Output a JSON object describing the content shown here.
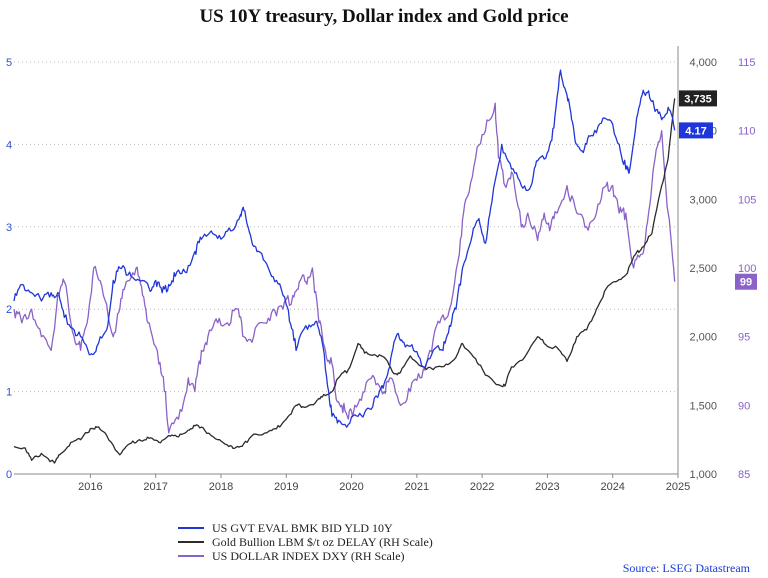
{
  "chart_data": {
    "type": "line",
    "title": "US 10Y treasury, Dollar index and Gold price",
    "x_ticks": [
      "2016",
      "2017",
      "2018",
      "2019",
      "2020",
      "2021",
      "2022",
      "2023",
      "2024",
      "2025"
    ],
    "x_range": [
      2015.33,
      2025.5
    ],
    "y_left": {
      "range": [
        0,
        5
      ],
      "ticks": [
        0,
        1,
        2,
        3,
        4,
        5
      ],
      "color": "#2f4fd8"
    },
    "y_gold": {
      "range": [
        1000,
        4000
      ],
      "ticks": [
        "1,000",
        "1,500",
        "2,000",
        "2,500",
        "3,000",
        "3,500",
        "4,000"
      ],
      "tick_values": [
        1000,
        1500,
        2000,
        2500,
        3000,
        3500,
        4000
      ],
      "color": "#444444"
    },
    "y_dxy": {
      "range": [
        85,
        115
      ],
      "ticks": [
        "85",
        "90",
        "95",
        "100",
        "105",
        "110",
        "115"
      ],
      "tick_values": [
        85,
        90,
        95,
        100,
        105,
        110,
        115
      ],
      "color": "#8a62c8"
    },
    "series": [
      {
        "name": "US GVT EVAL BMK BID YLD 10Y",
        "axis": "left",
        "color": "#1f36d8",
        "x": [
          2015.33,
          2015.45,
          2015.6,
          2015.75,
          2015.9,
          2016.0,
          2016.1,
          2016.25,
          2016.4,
          2016.5,
          2016.6,
          2016.75,
          2016.85,
          2016.95,
          2017.1,
          2017.25,
          2017.4,
          2017.5,
          2017.6,
          2017.7,
          2017.8,
          2017.95,
          2018.1,
          2018.2,
          2018.35,
          2018.5,
          2018.65,
          2018.8,
          2018.85,
          2018.95,
          2019.05,
          2019.2,
          2019.35,
          2019.5,
          2019.6,
          2019.65,
          2019.8,
          2019.95,
          2020.05,
          2020.15,
          2020.2,
          2020.3,
          2020.45,
          2020.6,
          2020.75,
          2020.9,
          2021.0,
          2021.1,
          2021.2,
          2021.3,
          2021.45,
          2021.6,
          2021.75,
          2021.9,
          2022.0,
          2022.1,
          2022.2,
          2022.35,
          2022.45,
          2022.55,
          2022.65,
          2022.8,
          2022.95,
          2023.1,
          2023.25,
          2023.35,
          2023.5,
          2023.6,
          2023.7,
          2023.8,
          2023.87,
          2023.95,
          2024.05,
          2024.15,
          2024.3,
          2024.45,
          2024.6,
          2024.7,
          2024.75,
          2024.85,
          2024.95,
          2025.05,
          2025.15,
          2025.25,
          2025.35,
          2025.45
        ],
        "values": [
          2.1,
          2.3,
          2.2,
          2.1,
          2.2,
          2.2,
          1.9,
          1.75,
          1.6,
          1.45,
          1.55,
          1.75,
          2.35,
          2.5,
          2.45,
          2.35,
          2.25,
          2.35,
          2.2,
          2.3,
          2.4,
          2.45,
          2.7,
          2.85,
          2.95,
          2.85,
          2.95,
          3.15,
          3.2,
          2.9,
          2.7,
          2.55,
          2.35,
          2.05,
          1.75,
          1.5,
          1.8,
          1.85,
          1.6,
          1.0,
          0.7,
          0.65,
          0.6,
          0.7,
          0.8,
          0.93,
          1.1,
          1.4,
          1.7,
          1.6,
          1.5,
          1.3,
          1.5,
          1.5,
          1.8,
          2.0,
          2.5,
          2.9,
          3.1,
          2.8,
          3.3,
          4.0,
          3.7,
          3.5,
          3.5,
          3.8,
          3.9,
          4.2,
          4.9,
          4.6,
          4.3,
          4.0,
          3.9,
          4.1,
          4.25,
          4.3,
          4.0,
          3.7,
          3.65,
          4.2,
          4.6,
          4.65,
          4.4,
          4.3,
          4.45,
          4.17
        ]
      },
      {
        "name": "Gold Bullion LBM $/t oz DELAY (RH Scale)",
        "axis": "gold",
        "color": "#2b2b2b",
        "x": [
          2015.33,
          2015.5,
          2015.6,
          2015.75,
          2015.95,
          2016.05,
          2016.2,
          2016.35,
          2016.5,
          2016.6,
          2016.75,
          2016.95,
          2017.1,
          2017.25,
          2017.4,
          2017.55,
          2017.7,
          2017.85,
          2018.0,
          2018.1,
          2018.25,
          2018.45,
          2018.62,
          2018.75,
          2018.9,
          2019.0,
          2019.2,
          2019.35,
          2019.5,
          2019.65,
          2019.75,
          2019.95,
          2020.05,
          2020.2,
          2020.3,
          2020.45,
          2020.6,
          2020.7,
          2020.85,
          2021.0,
          2021.15,
          2021.25,
          2021.4,
          2021.6,
          2021.75,
          2021.95,
          2022.1,
          2022.2,
          2022.4,
          2022.55,
          2022.75,
          2022.85,
          2022.95,
          2023.15,
          2023.35,
          2023.5,
          2023.65,
          2023.8,
          2023.95,
          2024.1,
          2024.25,
          2024.4,
          2024.55,
          2024.7,
          2024.85,
          2024.95,
          2025.1,
          2025.25,
          2025.35,
          2025.45
        ],
        "values": [
          1200,
          1190,
          1100,
          1150,
          1080,
          1150,
          1230,
          1250,
          1330,
          1340,
          1280,
          1140,
          1220,
          1250,
          1260,
          1230,
          1280,
          1270,
          1320,
          1350,
          1320,
          1250,
          1200,
          1200,
          1230,
          1290,
          1300,
          1330,
          1400,
          1500,
          1490,
          1520,
          1560,
          1600,
          1700,
          1760,
          1950,
          1880,
          1870,
          1850,
          1730,
          1740,
          1860,
          1780,
          1760,
          1800,
          1850,
          1950,
          1840,
          1720,
          1650,
          1640,
          1780,
          1850,
          2000,
          1930,
          1920,
          1820,
          2000,
          2050,
          2200,
          2350,
          2400,
          2450,
          2600,
          2650,
          2750,
          3100,
          3300,
          3735
        ]
      },
      {
        "name": "US DOLLAR INDEX DXY (RH Scale)",
        "axis": "dxy",
        "color": "#8a62c8",
        "x": [
          2015.33,
          2015.45,
          2015.6,
          2015.75,
          2015.9,
          2016.0,
          2016.1,
          2016.25,
          2016.35,
          2016.45,
          2016.55,
          2016.7,
          2016.85,
          2016.95,
          2017.05,
          2017.2,
          2017.3,
          2017.4,
          2017.55,
          2017.65,
          2017.7,
          2017.85,
          2018.0,
          2018.1,
          2018.2,
          2018.3,
          2018.45,
          2018.6,
          2018.75,
          2018.85,
          2019.0,
          2019.15,
          2019.3,
          2019.45,
          2019.6,
          2019.7,
          2019.8,
          2019.9,
          2020.0,
          2020.1,
          2020.2,
          2020.25,
          2020.35,
          2020.45,
          2020.55,
          2020.7,
          2020.85,
          2021.0,
          2021.1,
          2021.25,
          2021.4,
          2021.55,
          2021.7,
          2021.85,
          2022.0,
          2022.15,
          2022.25,
          2022.4,
          2022.55,
          2022.7,
          2022.75,
          2022.85,
          2022.95,
          2023.1,
          2023.2,
          2023.35,
          2023.45,
          2023.55,
          2023.65,
          2023.8,
          2023.95,
          2024.1,
          2024.25,
          2024.4,
          2024.5,
          2024.6,
          2024.7,
          2024.82,
          2024.95,
          2025.05,
          2025.15,
          2025.25,
          2025.35,
          2025.45
        ],
        "values": [
          97,
          96,
          97,
          95,
          94,
          98,
          99,
          95,
          94,
          96,
          100,
          98,
          95,
          97,
          99,
          100,
          98,
          96,
          93,
          91,
          88,
          89,
          92,
          91,
          94,
          95,
          96,
          96,
          97,
          95,
          95,
          96,
          97,
          97,
          98,
          99,
          99,
          100,
          96,
          94,
          93,
          91,
          90,
          89,
          90,
          91,
          92,
          91,
          92,
          90,
          91,
          92,
          94,
          96,
          97,
          101,
          105,
          108,
          110,
          112,
          108,
          106,
          107,
          103,
          104,
          102,
          104,
          103,
          104,
          106,
          104,
          103,
          104,
          106,
          106,
          104,
          104,
          100,
          101,
          104,
          108,
          110,
          104,
          99
        ]
      }
    ],
    "end_labels": {
      "yield": "4.17",
      "gold": "3,735",
      "dxy": "99"
    }
  },
  "legend": [
    {
      "label": "US GVT EVAL BMK BID YLD 10Y",
      "color": "#1f36d8"
    },
    {
      "label": "Gold Bullion LBM $/t oz DELAY (RH Scale)",
      "color": "#2b2b2b"
    },
    {
      "label": "US DOLLAR INDEX DXY (RH Scale)",
      "color": "#8a62c8"
    }
  ],
  "source": "Source: LSEG Datastream"
}
